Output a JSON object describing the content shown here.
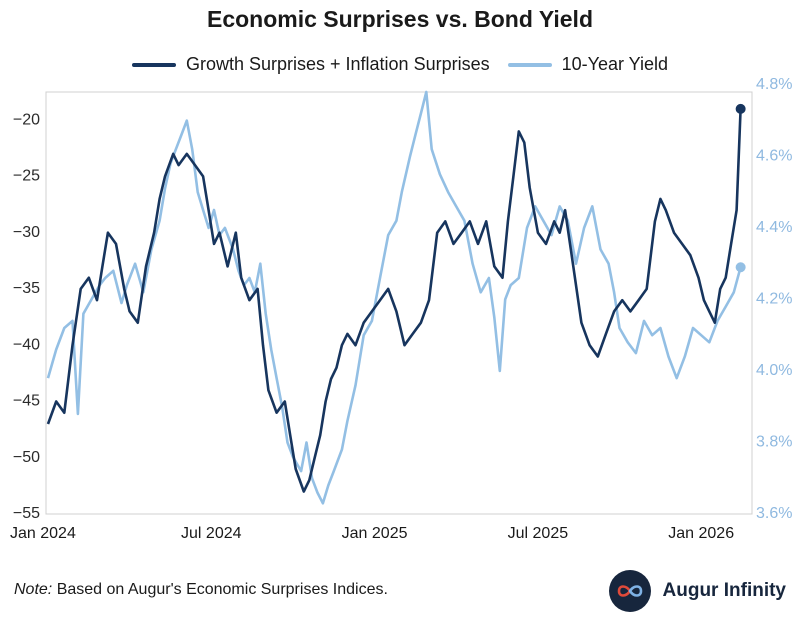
{
  "chart_data": {
    "type": "line",
    "title": "Economic Surprises vs. Bond Yield",
    "x_tick_labels": [
      "Jan 2024",
      "Jul 2024",
      "Jan 2025",
      "Jul 2025",
      "Jan 2026"
    ],
    "x_range_months": [
      0,
      25.5
    ],
    "y_left": {
      "range": [
        -55,
        -17.5
      ],
      "ticks": [
        -20,
        -25,
        -30,
        -35,
        -40,
        -45,
        -50,
        -55
      ]
    },
    "y_right": {
      "range": [
        3.6,
        4.78
      ],
      "ticks": [
        "4.8%",
        "4.6%",
        "4.4%",
        "4.2%",
        "4.0%",
        "3.8%",
        "3.6%"
      ],
      "tick_values": [
        4.8,
        4.6,
        4.4,
        4.2,
        4.0,
        3.8,
        3.6
      ]
    },
    "series": [
      {
        "name": "Growth Surprises + Inflation Surprises",
        "axis": "left",
        "color": "#17355e",
        "points": [
          [
            0.0,
            -47
          ],
          [
            0.3,
            -45
          ],
          [
            0.6,
            -46
          ],
          [
            0.9,
            -40
          ],
          [
            1.2,
            -35
          ],
          [
            1.5,
            -34
          ],
          [
            1.8,
            -36
          ],
          [
            2.0,
            -33
          ],
          [
            2.2,
            -30
          ],
          [
            2.5,
            -31
          ],
          [
            2.8,
            -35
          ],
          [
            3.0,
            -37
          ],
          [
            3.3,
            -38
          ],
          [
            3.6,
            -33
          ],
          [
            3.9,
            -30
          ],
          [
            4.1,
            -27
          ],
          [
            4.3,
            -25
          ],
          [
            4.6,
            -23
          ],
          [
            4.8,
            -24
          ],
          [
            5.1,
            -23
          ],
          [
            5.4,
            -24
          ],
          [
            5.7,
            -25
          ],
          [
            5.9,
            -28
          ],
          [
            6.1,
            -31
          ],
          [
            6.3,
            -30
          ],
          [
            6.6,
            -33
          ],
          [
            6.9,
            -30
          ],
          [
            7.1,
            -34
          ],
          [
            7.4,
            -36
          ],
          [
            7.7,
            -35
          ],
          [
            7.9,
            -40
          ],
          [
            8.1,
            -44
          ],
          [
            8.4,
            -46
          ],
          [
            8.7,
            -45
          ],
          [
            8.9,
            -48
          ],
          [
            9.1,
            -51
          ],
          [
            9.4,
            -53
          ],
          [
            9.6,
            -52
          ],
          [
            9.8,
            -50
          ],
          [
            10.0,
            -48
          ],
          [
            10.2,
            -45
          ],
          [
            10.4,
            -43
          ],
          [
            10.6,
            -42
          ],
          [
            10.8,
            -40
          ],
          [
            11.0,
            -39
          ],
          [
            11.3,
            -40
          ],
          [
            11.6,
            -38
          ],
          [
            11.9,
            -37
          ],
          [
            12.2,
            -36
          ],
          [
            12.5,
            -35
          ],
          [
            12.8,
            -37
          ],
          [
            13.1,
            -40
          ],
          [
            13.4,
            -39
          ],
          [
            13.7,
            -38
          ],
          [
            14.0,
            -36
          ],
          [
            14.3,
            -30
          ],
          [
            14.6,
            -29
          ],
          [
            14.9,
            -31
          ],
          [
            15.2,
            -30
          ],
          [
            15.5,
            -29
          ],
          [
            15.8,
            -31
          ],
          [
            16.1,
            -29
          ],
          [
            16.4,
            -33
          ],
          [
            16.7,
            -34
          ],
          [
            16.9,
            -29
          ],
          [
            17.1,
            -25
          ],
          [
            17.3,
            -21
          ],
          [
            17.5,
            -22
          ],
          [
            17.7,
            -26
          ],
          [
            18.0,
            -30
          ],
          [
            18.3,
            -31
          ],
          [
            18.6,
            -29
          ],
          [
            18.8,
            -30
          ],
          [
            19.0,
            -28
          ],
          [
            19.3,
            -33
          ],
          [
            19.6,
            -38
          ],
          [
            19.9,
            -40
          ],
          [
            20.2,
            -41
          ],
          [
            20.5,
            -39
          ],
          [
            20.8,
            -37
          ],
          [
            21.1,
            -36
          ],
          [
            21.4,
            -37
          ],
          [
            21.7,
            -36
          ],
          [
            22.0,
            -35
          ],
          [
            22.3,
            -29
          ],
          [
            22.5,
            -27
          ],
          [
            22.7,
            -28
          ],
          [
            23.0,
            -30
          ],
          [
            23.3,
            -31
          ],
          [
            23.6,
            -32
          ],
          [
            23.9,
            -34
          ],
          [
            24.1,
            -36
          ],
          [
            24.3,
            -37
          ],
          [
            24.5,
            -38
          ],
          [
            24.7,
            -35
          ],
          [
            24.9,
            -34
          ],
          [
            25.1,
            -31
          ],
          [
            25.3,
            -28
          ],
          [
            25.45,
            -19
          ]
        ]
      },
      {
        "name": "10-Year Yield",
        "axis": "right",
        "color": "#93bfe4",
        "points": [
          [
            0.0,
            3.98
          ],
          [
            0.3,
            4.06
          ],
          [
            0.6,
            4.12
          ],
          [
            0.9,
            4.14
          ],
          [
            1.1,
            3.88
          ],
          [
            1.3,
            4.16
          ],
          [
            1.6,
            4.2
          ],
          [
            1.9,
            4.24
          ],
          [
            2.1,
            4.26
          ],
          [
            2.4,
            4.28
          ],
          [
            2.7,
            4.19
          ],
          [
            2.9,
            4.24
          ],
          [
            3.2,
            4.3
          ],
          [
            3.5,
            4.22
          ],
          [
            3.8,
            4.34
          ],
          [
            4.1,
            4.42
          ],
          [
            4.3,
            4.51
          ],
          [
            4.5,
            4.58
          ],
          [
            4.7,
            4.62
          ],
          [
            4.9,
            4.66
          ],
          [
            5.1,
            4.7
          ],
          [
            5.3,
            4.62
          ],
          [
            5.5,
            4.5
          ],
          [
            5.7,
            4.45
          ],
          [
            5.9,
            4.4
          ],
          [
            6.1,
            4.45
          ],
          [
            6.3,
            4.38
          ],
          [
            6.5,
            4.4
          ],
          [
            6.8,
            4.34
          ],
          [
            7.0,
            4.28
          ],
          [
            7.2,
            4.24
          ],
          [
            7.4,
            4.26
          ],
          [
            7.6,
            4.22
          ],
          [
            7.8,
            4.3
          ],
          [
            8.0,
            4.16
          ],
          [
            8.2,
            4.06
          ],
          [
            8.4,
            3.98
          ],
          [
            8.6,
            3.9
          ],
          [
            8.8,
            3.8
          ],
          [
            9.0,
            3.76
          ],
          [
            9.3,
            3.72
          ],
          [
            9.5,
            3.8
          ],
          [
            9.7,
            3.7
          ],
          [
            9.9,
            3.66
          ],
          [
            10.1,
            3.63
          ],
          [
            10.3,
            3.68
          ],
          [
            10.5,
            3.72
          ],
          [
            10.8,
            3.78
          ],
          [
            11.0,
            3.86
          ],
          [
            11.3,
            3.96
          ],
          [
            11.6,
            4.1
          ],
          [
            11.9,
            4.14
          ],
          [
            12.2,
            4.26
          ],
          [
            12.5,
            4.38
          ],
          [
            12.8,
            4.42
          ],
          [
            13.0,
            4.5
          ],
          [
            13.3,
            4.6
          ],
          [
            13.5,
            4.66
          ],
          [
            13.7,
            4.72
          ],
          [
            13.9,
            4.78
          ],
          [
            14.1,
            4.62
          ],
          [
            14.4,
            4.55
          ],
          [
            14.7,
            4.5
          ],
          [
            15.0,
            4.46
          ],
          [
            15.3,
            4.42
          ],
          [
            15.6,
            4.3
          ],
          [
            15.9,
            4.22
          ],
          [
            16.2,
            4.26
          ],
          [
            16.4,
            4.15
          ],
          [
            16.6,
            4.0
          ],
          [
            16.8,
            4.2
          ],
          [
            17.0,
            4.24
          ],
          [
            17.3,
            4.26
          ],
          [
            17.6,
            4.4
          ],
          [
            17.9,
            4.46
          ],
          [
            18.2,
            4.42
          ],
          [
            18.5,
            4.38
          ],
          [
            18.8,
            4.46
          ],
          [
            19.1,
            4.42
          ],
          [
            19.4,
            4.3
          ],
          [
            19.7,
            4.4
          ],
          [
            20.0,
            4.46
          ],
          [
            20.3,
            4.34
          ],
          [
            20.6,
            4.3
          ],
          [
            20.8,
            4.22
          ],
          [
            21.0,
            4.12
          ],
          [
            21.3,
            4.08
          ],
          [
            21.6,
            4.05
          ],
          [
            21.9,
            4.14
          ],
          [
            22.2,
            4.1
          ],
          [
            22.5,
            4.12
          ],
          [
            22.8,
            4.04
          ],
          [
            23.1,
            3.98
          ],
          [
            23.4,
            4.04
          ],
          [
            23.7,
            4.12
          ],
          [
            24.0,
            4.1
          ],
          [
            24.3,
            4.08
          ],
          [
            24.6,
            4.14
          ],
          [
            24.9,
            4.18
          ],
          [
            25.2,
            4.22
          ],
          [
            25.45,
            4.29
          ]
        ]
      }
    ]
  },
  "note": {
    "label": "Note:",
    "text": " Based on Augur's Economic Surprises Indices."
  },
  "brand": {
    "name": "Augur Infinity",
    "logo_icon": "infinity-icon"
  },
  "colors": {
    "dark_series": "#17355e",
    "light_series": "#93bfe4",
    "brand": "#17263d",
    "accent_red": "#e04a3a"
  }
}
